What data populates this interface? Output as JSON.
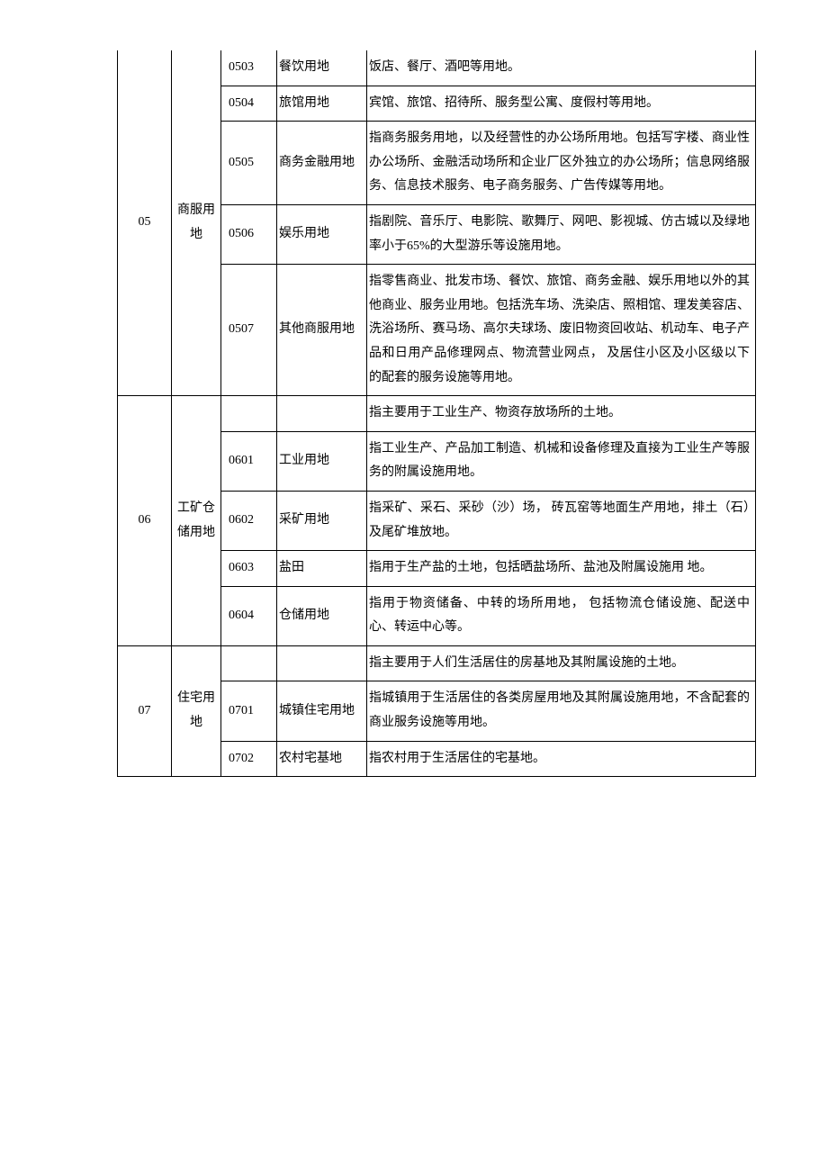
{
  "groups": [
    {
      "code": "05",
      "category": "商服用地",
      "rows": [
        {
          "sub": "0503",
          "name": "餐饮用地",
          "desc": "饭店、餐厅、酒吧等用地。"
        },
        {
          "sub": "0504",
          "name": "旅馆用地",
          "desc": "宾馆、旅馆、招待所、服务型公寓、度假村等用地。"
        },
        {
          "sub": "0505",
          "name": "商务金融用地",
          "desc": " 指商务服务用地，以及经营性的办公场所用地。包括写字楼、商业性办公场所、金融活动场所和企业厂区外独立的办公场所；信息网络服务、信息技术服务、电子商务服务、广告传媒等用地。"
        },
        {
          "sub": "0506",
          "name": "娱乐用地",
          "desc": " 指剧院、音乐厅、电影院、歌舞厅、网吧、影视城、仿古城以及绿地率小于65%的大型游乐等设施用地。"
        },
        {
          "sub": "0507",
          "name": "其他商服用地",
          "desc": " 指零售商业、批发市场、餐饮、旅馆、商务金融、娱乐用地以外的其他商业、服务业用地。包括洗车场、洗染店、照相馆、理发美容店、洗浴场所、赛马场、高尔夫球场、废旧物资回收站、机动车、电子产品和日用产品修理网点、物流营业网点， 及居住小区及小区级以下的配套的服务设施等用地。"
        }
      ]
    },
    {
      "code": "06",
      "category": "工矿仓储用地",
      "header_desc": "指主要用于工业生产、物资存放场所的土地。",
      "rows": [
        {
          "sub": "0601",
          "name": "工业用地",
          "desc": " 指工业生产、产品加工制造、机械和设备修理及直接为工业生产等服务的附属设施用地。"
        },
        {
          "sub": "0602",
          "name": "采矿用地",
          "desc": " 指采矿、采石、采砂（沙）场， 砖瓦窑等地面生产用地，排土（石）及尾矿堆放地。"
        },
        {
          "sub": "0603",
          "name": "盐田",
          "desc": " 指用于生产盐的土地，包括晒盐场所、盐池及附属设施用  地。"
        },
        {
          "sub": "0604",
          "name": "仓储用地",
          "desc": " 指用于物资储备、中转的场所用地， 包括物流仓储设施、配送中心、转运中心等。"
        }
      ]
    },
    {
      "code": "07",
      "category": "住宅用地",
      "header_desc": "指主要用于人们生活居住的房基地及其附属设施的土地。",
      "rows": [
        {
          "sub": "0701",
          "name": "城镇住宅用地",
          "desc": " 指城镇用于生活居住的各类房屋用地及其附属设施用地，不含配套的商业服务设施等用地。"
        },
        {
          "sub": "0702",
          "name": "农村宅基地",
          "desc": "指农村用于生活居住的宅基地。"
        }
      ]
    }
  ]
}
